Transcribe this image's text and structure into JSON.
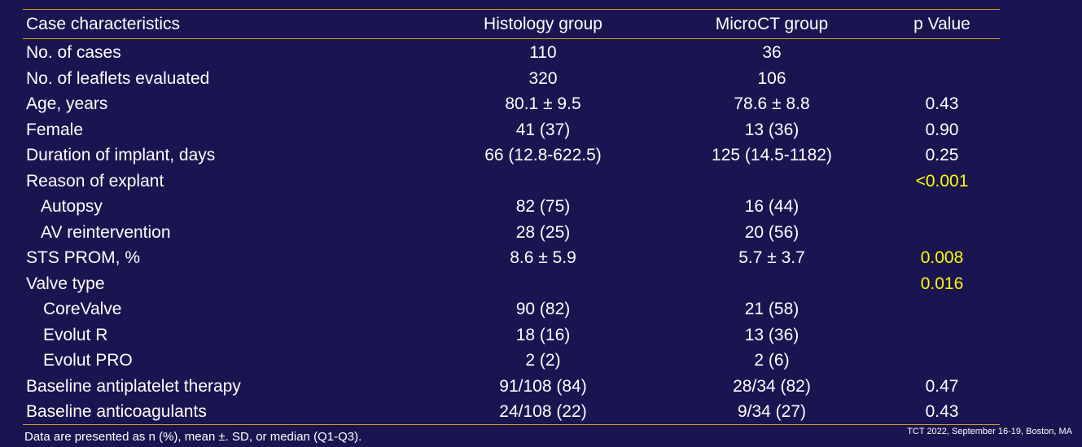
{
  "table": {
    "headers": [
      "Case characteristics",
      "Histology group",
      "MicroCT group",
      "p Value"
    ],
    "rows": [
      {
        "label": "No. of cases",
        "histology": "110",
        "microct": "36",
        "p": ""
      },
      {
        "label": "No. of leaflets evaluated",
        "histology": "320",
        "microct": "106",
        "p": ""
      },
      {
        "label": "Age, years",
        "histology": "80.1 ± 9.5",
        "microct": "78.6 ± 8.8",
        "p": "0.43"
      },
      {
        "label": "Female",
        "histology": "41 (37)",
        "microct": "13 (36)",
        "p": "0.90"
      },
      {
        "label": "Duration of implant, days",
        "histology": "66 (12.8-622.5)",
        "microct": "125 (14.5-1182)",
        "p": "0.25"
      },
      {
        "label": "Reason of explant",
        "histology": "",
        "microct": "",
        "p": "<0.001"
      },
      {
        "label": "Autopsy",
        "histology": "82 (75)",
        "microct": "16 (44)",
        "p": ""
      },
      {
        "label": "AV reintervention",
        "histology": "28 (25)",
        "microct": "20 (56)",
        "p": ""
      },
      {
        "label": "STS PROM, %",
        "histology": "8.6 ± 5.9",
        "microct": "5.7 ± 3.7",
        "p": "0.008"
      },
      {
        "label": "Valve type",
        "histology": "",
        "microct": "",
        "p": "0.016"
      },
      {
        "label": "CoreValve",
        "histology": "90 (82)",
        "microct": "21 (58)",
        "p": ""
      },
      {
        "label": "Evolut R",
        "histology": "18 (16)",
        "microct": "13 (36)",
        "p": ""
      },
      {
        "label": "Evolut PRO",
        "histology": "2 (2)",
        "microct": "2 (6)",
        "p": ""
      },
      {
        "label": "Baseline antiplatelet therapy",
        "histology": "91/108 (84)",
        "microct": "28/34 (82)",
        "p": "0.47"
      },
      {
        "label": "Baseline anticoagulants",
        "histology": "24/108 (22)",
        "microct": "9/34 (27)",
        "p": "0.43"
      }
    ]
  },
  "footnote": "Data are presented as n (%), mean ±. SD, or median (Q1-Q3).",
  "source": "TCT 2022, September 16-19, Boston, MA",
  "colors": {
    "background": "#1a1450",
    "text": "#ffffff",
    "highlight": "#ffff00",
    "rule": "#c9a227"
  }
}
